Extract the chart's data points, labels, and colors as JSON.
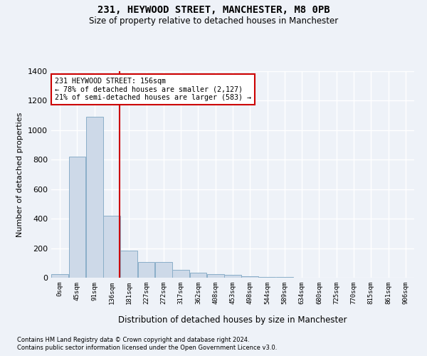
{
  "title1": "231, HEYWOOD STREET, MANCHESTER, M8 0PB",
  "title2": "Size of property relative to detached houses in Manchester",
  "xlabel": "Distribution of detached houses by size in Manchester",
  "ylabel": "Number of detached properties",
  "bar_labels": [
    "0sqm",
    "45sqm",
    "91sqm",
    "136sqm",
    "181sqm",
    "227sqm",
    "272sqm",
    "317sqm",
    "362sqm",
    "408sqm",
    "453sqm",
    "498sqm",
    "544sqm",
    "589sqm",
    "634sqm",
    "680sqm",
    "725sqm",
    "770sqm",
    "815sqm",
    "861sqm",
    "906sqm"
  ],
  "bar_values": [
    22,
    820,
    1090,
    420,
    185,
    105,
    105,
    52,
    35,
    25,
    18,
    8,
    5,
    3,
    2,
    1,
    1,
    0,
    0,
    0,
    0
  ],
  "bar_color": "#cdd9e8",
  "bar_edgecolor": "#8aaec8",
  "ylim": [
    0,
    1400
  ],
  "yticks": [
    0,
    200,
    400,
    600,
    800,
    1000,
    1200,
    1400
  ],
  "property_line_x": 156,
  "annotation_title": "231 HEYWOOD STREET: 156sqm",
  "annotation_line1": "← 78% of detached houses are smaller (2,127)",
  "annotation_line2": "21% of semi-detached houses are larger (583) →",
  "annotation_box_color": "#ffffff",
  "annotation_box_edgecolor": "#cc0000",
  "vline_color": "#cc0000",
  "background_color": "#eef2f8",
  "grid_color": "#ffffff",
  "footer1": "Contains HM Land Registry data © Crown copyright and database right 2024.",
  "footer2": "Contains public sector information licensed under the Open Government Licence v3.0.",
  "bin_width": 45,
  "n_bars": 21
}
